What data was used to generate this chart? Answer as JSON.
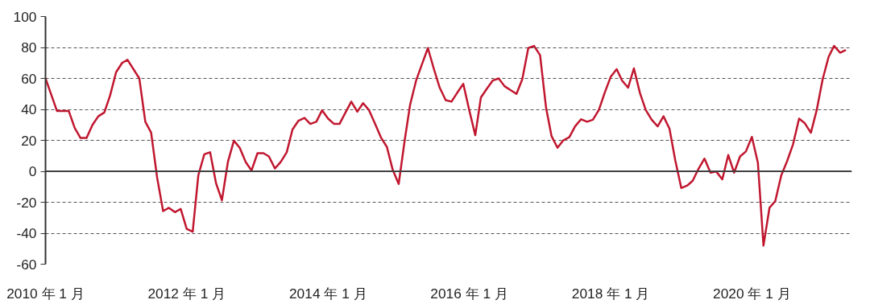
{
  "chart_data": {
    "type": "line",
    "x": [
      "2010-01",
      "2010-03",
      "2010-05",
      "2010-06",
      "2010-07",
      "2010-08",
      "2010-09",
      "2010-10",
      "2010-11",
      "2010-12",
      "2011-01",
      "2011-02",
      "2011-03",
      "2011-05",
      "2011-06",
      "2011-07",
      "2011-08",
      "2011-09",
      "2011-10",
      "2011-11",
      "2011-12",
      "2012-01",
      "2012-02",
      "2012-03",
      "2012-04",
      "2012-05",
      "2012-06",
      "2012-07",
      "2012-08",
      "2012-09",
      "2012-10",
      "2012-11",
      "2012-12",
      "2013-01",
      "2013-02",
      "2013-03",
      "2013-04",
      "2013-05",
      "2013-06",
      "2013-07",
      "2013-08",
      "2013-09",
      "2013-10",
      "2013-11",
      "2013-12",
      "2014-01",
      "2014-02",
      "2014-03",
      "2014-04",
      "2014-05",
      "2014-06",
      "2014-07",
      "2014-08",
      "2014-09",
      "2014-10",
      "2014-11",
      "2014-12",
      "2015-01",
      "2015-02",
      "2015-03",
      "2015-04",
      "2015-05",
      "2015-06",
      "2015-07",
      "2015-08",
      "2015-09",
      "2015-10",
      "2015-11",
      "2015-12",
      "2016-01",
      "2016-02",
      "2016-03",
      "2016-04",
      "2016-05",
      "2016-06",
      "2016-07",
      "2016-08",
      "2016-09",
      "2016-10",
      "2016-11",
      "2016-12",
      "2017-01",
      "2017-02",
      "2017-03",
      "2017-04",
      "2017-05",
      "2017-06",
      "2017-07",
      "2017-08",
      "2017-09",
      "2017-10",
      "2017-11",
      "2017-12",
      "2018-01",
      "2018-02",
      "2018-03",
      "2018-04",
      "2018-05",
      "2018-06",
      "2018-07",
      "2018-08",
      "2018-09",
      "2018-10",
      "2018-11",
      "2018-12",
      "2019-01",
      "2019-02",
      "2019-03",
      "2019-04",
      "2019-05",
      "2019-06",
      "2019-07",
      "2019-08",
      "2019-09",
      "2019-10",
      "2019-11",
      "2019-12",
      "2020-01",
      "2020-02",
      "2020-03",
      "2020-04",
      "2020-05",
      "2020-06",
      "2020-07",
      "2020-08",
      "2020-09",
      "2020-10",
      "2020-11",
      "2020-12",
      "2021-01",
      "2021-02",
      "2021-03",
      "2021-04",
      "2021-05"
    ],
    "series": [
      {
        "color": "#c0172f",
        "values": [
          60,
          39,
          39,
          28,
          21.5,
          21.5,
          30,
          35.5,
          38,
          49,
          64,
          70,
          72,
          60,
          32,
          25,
          -4,
          -25.7,
          -23.6,
          -26.4,
          -24.3,
          -37.2,
          -39,
          -2.6,
          11,
          12.3,
          -7.9,
          -18.7,
          6,
          19.8,
          15.2,
          6,
          0.5,
          11.7,
          11.7,
          9.6,
          1.8,
          6,
          12.3,
          27,
          32.7,
          34.5,
          30.6,
          32,
          39.4,
          34,
          30.6,
          30.6,
          38,
          45,
          38.5,
          44,
          39.4,
          30.6,
          21.9,
          15.7,
          1,
          -8.2,
          20,
          43,
          58.6,
          69,
          79.6,
          66.5,
          54,
          46,
          45,
          51,
          56.5,
          39.4,
          23.3,
          47.7,
          53.4,
          58.6,
          60,
          55,
          52.5,
          50,
          59.5,
          79.6,
          81,
          75,
          41,
          22.8,
          15.2,
          20,
          22,
          29,
          33.6,
          32,
          33.3,
          39.7,
          50.7,
          61,
          66,
          58.6,
          54,
          66.5,
          50.7,
          39.7,
          33.3,
          29,
          35.5,
          27.5,
          7,
          -10.8,
          -9.2,
          -6.1,
          1.8,
          8.2,
          -0.9,
          -0.2,
          -5.2,
          10.5,
          -0.9,
          9.6,
          12.8,
          22.2,
          5.6,
          -48,
          -23.6,
          -19.2,
          -2.6,
          6.5,
          17.5,
          34,
          31,
          24.9,
          39.4,
          59.5,
          74,
          81,
          76.6,
          78.4
        ]
      }
    ],
    "xlim": [
      "2010-01",
      "2021-06"
    ],
    "xticks": [
      {
        "value": "2010-01",
        "label": "2010 年 1 月"
      },
      {
        "value": "2012-01",
        "label": "2012 年 1 月"
      },
      {
        "value": "2014-01",
        "label": "2014 年 1 月"
      },
      {
        "value": "2016-01",
        "label": "2016 年 1 月"
      },
      {
        "value": "2018-01",
        "label": "2018 年 1 月"
      },
      {
        "value": "2020-01",
        "label": "2020 年 1 月"
      }
    ],
    "ylim": [
      -60,
      100
    ],
    "yticks": [
      -60,
      -40,
      -20,
      0,
      20,
      40,
      60,
      80,
      100
    ],
    "ref_lines": [
      {
        "axis": "y",
        "value": 0,
        "color": "#404040"
      }
    ],
    "grid": "y",
    "marker": "none",
    "line_style": "solid"
  }
}
